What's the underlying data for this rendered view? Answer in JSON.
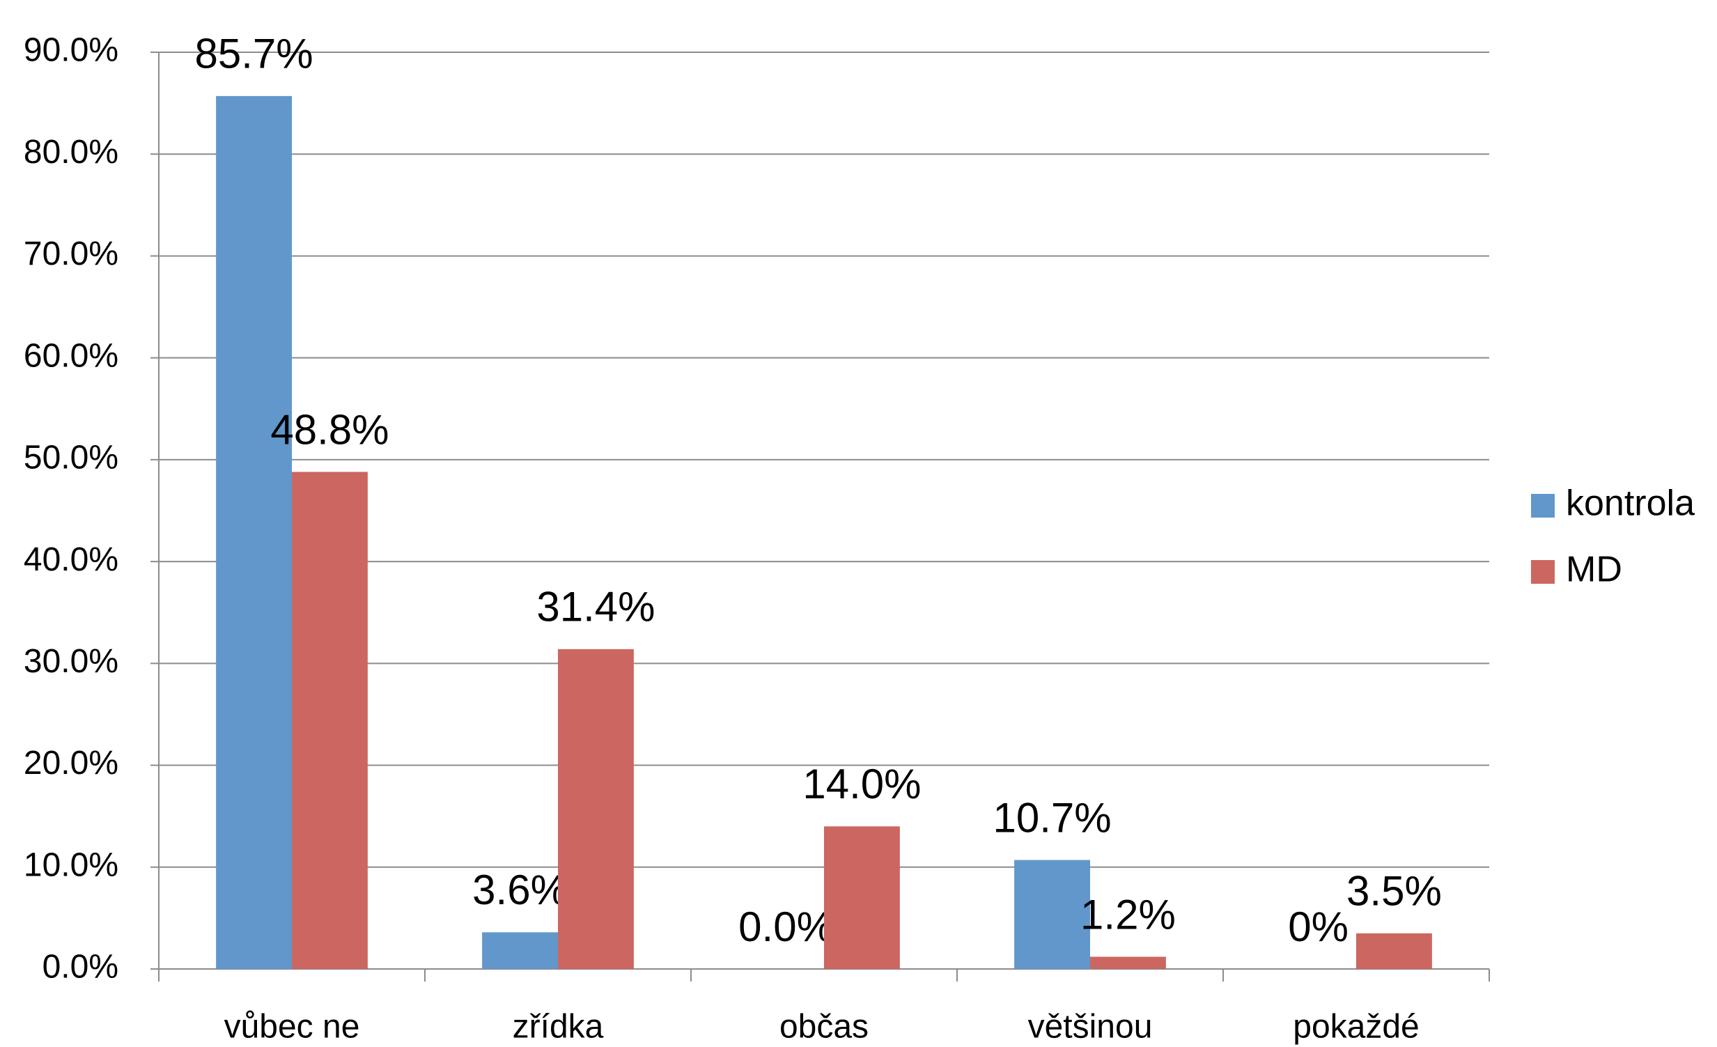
{
  "chart_data": {
    "type": "bar",
    "categories": [
      "vůbec ne",
      "zřídka",
      "občas",
      "většinou",
      "pokaždé"
    ],
    "series": [
      {
        "name": "kontrola",
        "color": "#6197cb",
        "values": [
          85.7,
          3.6,
          0.0,
          10.7,
          0
        ],
        "value_labels": [
          "85.7%",
          "3.6%",
          "0.0%",
          "10.7%",
          "0%"
        ]
      },
      {
        "name": "MD",
        "color": "#cc6660",
        "values": [
          48.8,
          31.4,
          14.0,
          1.2,
          3.5
        ],
        "value_labels": [
          "48.8%",
          "31.4%",
          "14.0%",
          "1.2%",
          "3.5%"
        ]
      }
    ],
    "ylim": [
      0,
      90
    ],
    "yticks": [
      {
        "value": 0,
        "label": "0.0%"
      },
      {
        "value": 10,
        "label": "10.0%"
      },
      {
        "value": 20,
        "label": "20.0%"
      },
      {
        "value": 30,
        "label": "30.0%"
      },
      {
        "value": 40,
        "label": "40.0%"
      },
      {
        "value": 50,
        "label": "50.0%"
      },
      {
        "value": 60,
        "label": "60.0%"
      },
      {
        "value": 70,
        "label": "70.0%"
      },
      {
        "value": 80,
        "label": "80.0%"
      },
      {
        "value": 90,
        "label": "90.0%"
      }
    ],
    "grid": true,
    "legend": "right"
  }
}
